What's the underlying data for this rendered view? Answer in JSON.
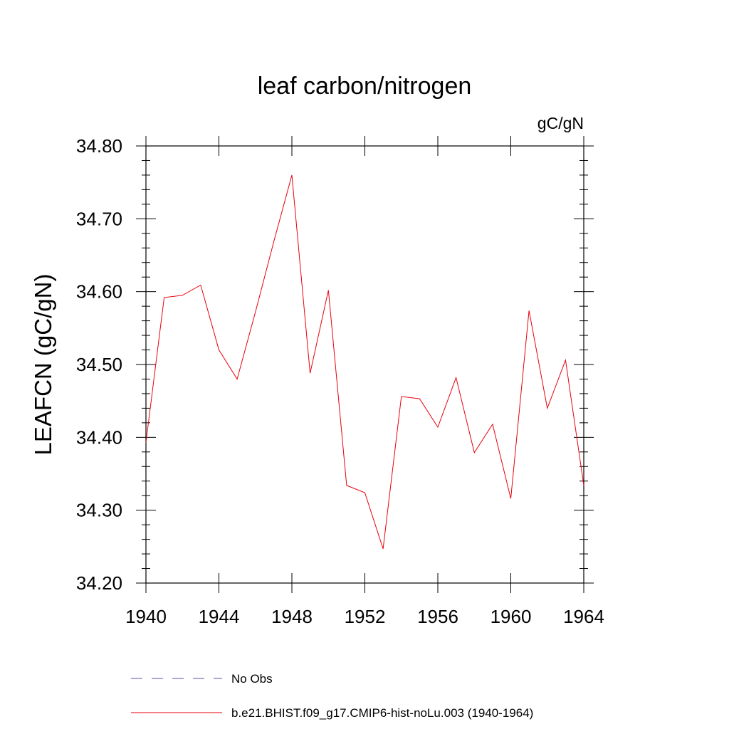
{
  "chart_data": {
    "type": "line",
    "title": "leaf carbon/nitrogen",
    "units": "gC/gN",
    "ylabel": "LEAFCN  (gC/gN)",
    "xlabel": "",
    "xlim": [
      1940,
      1964
    ],
    "ylim": [
      34.2,
      34.8
    ],
    "x_ticks": [
      1940,
      1944,
      1948,
      1952,
      1956,
      1960,
      1964
    ],
    "y_ticks": [
      34.2,
      34.3,
      34.4,
      34.5,
      34.6,
      34.7,
      34.8
    ],
    "x_tick_labels": [
      "1940",
      "1944",
      "1948",
      "1952",
      "1956",
      "1960",
      "1964"
    ],
    "y_tick_labels": [
      "34.20",
      "34.30",
      "34.40",
      "34.50",
      "34.60",
      "34.70",
      "34.80"
    ],
    "series": [
      {
        "name": "b.e21.BHIST.f09_g17.CMIP6-hist-noLu.003 (1940-1964)",
        "color": "#e8000b",
        "style": "solid",
        "x": [
          1940,
          1941,
          1942,
          1943,
          1944,
          1945,
          1946,
          1947,
          1948,
          1949,
          1950,
          1951,
          1952,
          1953,
          1954,
          1955,
          1956,
          1957,
          1958,
          1959,
          1960,
          1961,
          1962,
          1963,
          1964
        ],
        "values": [
          34.393,
          34.592,
          34.595,
          34.609,
          34.52,
          34.48,
          34.572,
          34.668,
          34.76,
          34.488,
          34.602,
          34.334,
          34.324,
          34.247,
          34.456,
          34.453,
          34.414,
          34.482,
          34.379,
          34.418,
          34.316,
          34.574,
          34.44,
          34.506,
          34.334
        ]
      }
    ],
    "legend": [
      {
        "label": "No Obs",
        "color": "#5a50a8",
        "style": "dashed"
      },
      {
        "label": "b.e21.BHIST.f09_g17.CMIP6-hist-noLu.003 (1940-1964)",
        "color": "#e8000b",
        "style": "solid"
      }
    ],
    "legend_position": "bottom"
  }
}
